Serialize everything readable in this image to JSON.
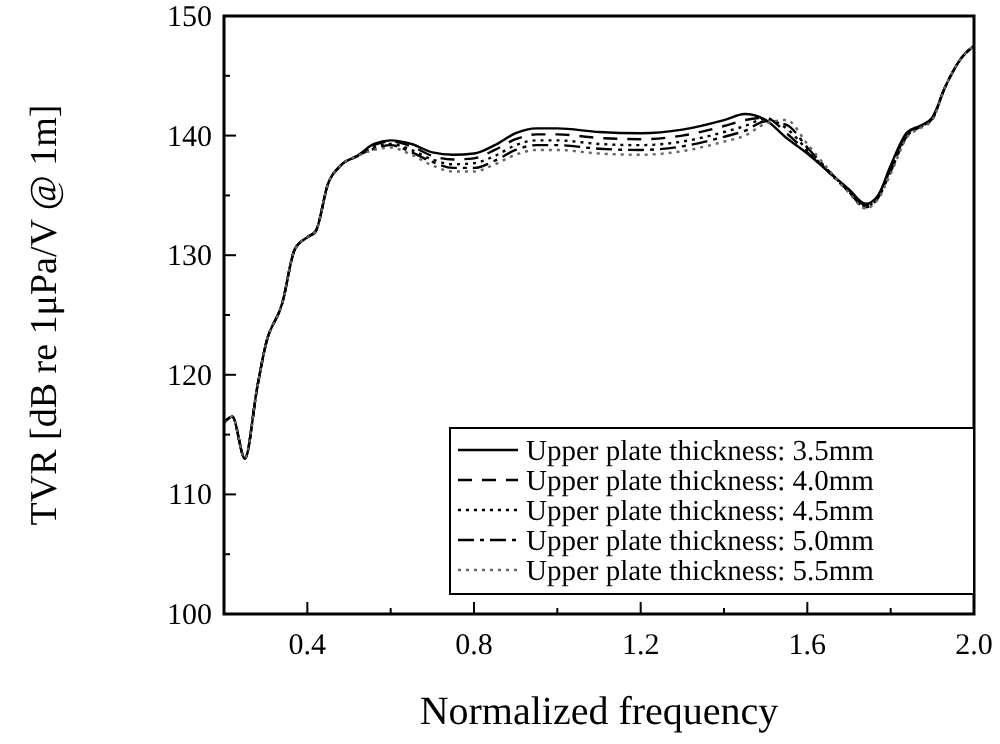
{
  "chart_data": {
    "type": "line",
    "xlabel": "Normalized frequency",
    "ylabel": "TVR [dB re 1μPa/V @ 1m]",
    "x": [
      0.2,
      0.22,
      0.25,
      0.28,
      0.3,
      0.34,
      0.37,
      0.4,
      0.42,
      0.45,
      0.48,
      0.52,
      0.56,
      0.6,
      0.65,
      0.7,
      0.75,
      0.8,
      0.85,
      0.9,
      0.95,
      1.0,
      1.1,
      1.2,
      1.3,
      1.4,
      1.45,
      1.5,
      1.55,
      1.6,
      1.65,
      1.7,
      1.74,
      1.77,
      1.8,
      1.84,
      1.87,
      1.9,
      1.93,
      1.97,
      2.0
    ],
    "series": [
      {
        "name": "Upper plate thickness: 3.5mm",
        "color": "#000000",
        "line_style": "solid",
        "values": [
          116,
          116.5,
          113,
          119,
          122.5,
          126,
          130.5,
          131.5,
          132,
          136,
          137.5,
          138.3,
          139.3,
          139.6,
          139.3,
          138.6,
          138.4,
          138.5,
          139.2,
          140.2,
          140.6,
          140.6,
          140.3,
          140.2,
          140.5,
          141.3,
          141.8,
          141.3,
          139.8,
          138.5,
          137,
          135.5,
          134.3,
          135,
          137.5,
          140.3,
          140.8,
          141.5,
          144,
          146.5,
          147.5
        ]
      },
      {
        "name": "Upper plate thickness: 4.0mm",
        "color": "#000000",
        "line_style": "dashed",
        "values": [
          116,
          116.5,
          113,
          119,
          122.5,
          126,
          130.5,
          131.5,
          132,
          136,
          137.5,
          138.3,
          139.2,
          139.5,
          139.1,
          138.3,
          138.0,
          138.1,
          138.8,
          139.7,
          140.1,
          140.1,
          139.8,
          139.7,
          140.0,
          140.8,
          141.3,
          141.5,
          140.2,
          138.6,
          137,
          135.4,
          134.2,
          135,
          137.3,
          140.2,
          140.8,
          141.5,
          144,
          146.5,
          147.5
        ]
      },
      {
        "name": "Upper plate thickness: 4.5mm",
        "color": "#000000",
        "line_style": "dotted",
        "values": [
          116,
          116.5,
          113,
          119,
          122.5,
          126,
          130.5,
          131.5,
          132,
          136,
          137.5,
          138.3,
          139.0,
          139.3,
          138.8,
          138.0,
          137.6,
          137.7,
          138.3,
          139.2,
          139.6,
          139.6,
          139.3,
          139.2,
          139.5,
          140.3,
          140.8,
          141.4,
          140.6,
          138.8,
          137,
          135.3,
          134.1,
          134.9,
          137.2,
          140.1,
          140.7,
          141.4,
          144,
          146.5,
          147.5
        ]
      },
      {
        "name": "Upper plate thickness: 5.0mm",
        "color": "#000000",
        "line_style": "dashdot",
        "values": [
          116,
          116.5,
          113,
          119,
          122.5,
          126,
          130.5,
          131.5,
          132,
          136,
          137.5,
          138.3,
          138.9,
          139.2,
          138.6,
          137.8,
          137.3,
          137.3,
          137.9,
          138.8,
          139.2,
          139.2,
          138.9,
          138.8,
          139.1,
          139.9,
          140.4,
          141.2,
          140.9,
          139.0,
          137.1,
          135.3,
          134.0,
          134.8,
          137.0,
          140.0,
          140.7,
          141.4,
          144,
          146.5,
          147.5
        ]
      },
      {
        "name": "Upper plate thickness: 5.5mm",
        "color": "#666666",
        "line_style": "dotted",
        "values": [
          116,
          116.5,
          113,
          119,
          122.5,
          126,
          130.5,
          131.5,
          132,
          136,
          137.5,
          138.3,
          138.8,
          139.0,
          138.4,
          137.5,
          137.0,
          137.0,
          137.6,
          138.4,
          138.8,
          138.8,
          138.5,
          138.4,
          138.7,
          139.5,
          140.0,
          141.0,
          141.3,
          139.3,
          137.2,
          135.2,
          133.9,
          134.7,
          136.8,
          139.9,
          140.6,
          141.3,
          144,
          146.5,
          147.5
        ]
      }
    ],
    "xlim": [
      0.2,
      2.0
    ],
    "xticks": [
      {
        "value": 0.2,
        "label": null
      },
      {
        "value": 0.4,
        "label": "0.4"
      },
      {
        "value": 0.6,
        "label": null
      },
      {
        "value": 0.8,
        "label": "0.8"
      },
      {
        "value": 1.0,
        "label": null
      },
      {
        "value": 1.2,
        "label": "1.2"
      },
      {
        "value": 1.4,
        "label": null
      },
      {
        "value": 1.6,
        "label": "1.6"
      },
      {
        "value": 1.8,
        "label": null
      },
      {
        "value": 2.0,
        "label": "2.0"
      }
    ],
    "ylim": [
      100,
      150
    ],
    "yticks": [
      100,
      {
        "value": 105,
        "label": null
      },
      110,
      {
        "value": 115,
        "label": null
      },
      120,
      {
        "value": 125,
        "label": null
      },
      130,
      {
        "value": 135,
        "label": null
      },
      140,
      {
        "value": 145,
        "label": null
      },
      150
    ],
    "grid": false,
    "legend": "bottom right"
  }
}
